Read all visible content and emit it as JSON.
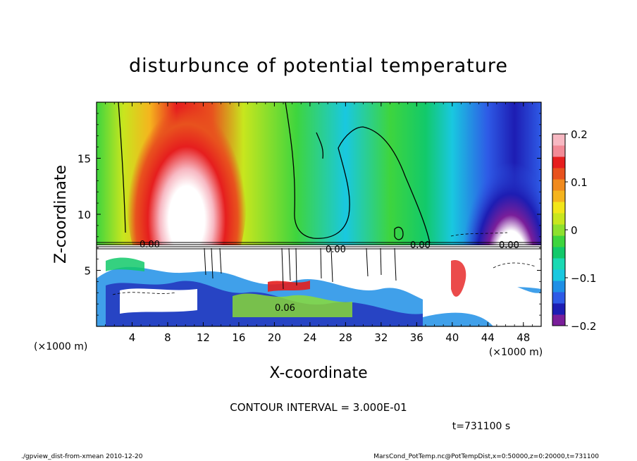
{
  "chart_data": {
    "type": "heatmap",
    "title": "disturbunce of potential temperature",
    "xlabel": "X-coordinate",
    "ylabel": "Z-coordinate",
    "xunit": "(×1000 m)",
    "yunit": "(×1000 m)",
    "x_ticks": [
      "4",
      "8",
      "12",
      "16",
      "20",
      "24",
      "28",
      "32",
      "36",
      "40",
      "44",
      "48"
    ],
    "y_ticks": [
      "5",
      "10",
      "15"
    ],
    "xlim": [
      0,
      50
    ],
    "ylim": [
      0,
      20
    ],
    "colorbar": {
      "ticks": [
        "0.2",
        "0.1",
        "0",
        "−0.1",
        "−0.2"
      ],
      "range": [
        -0.2,
        0.2
      ],
      "colors": [
        "#7a1e9a",
        "#1d1db3",
        "#2e5ae6",
        "#1e8fe6",
        "#19c8e0",
        "#1ad9b3",
        "#12c96a",
        "#3ed53e",
        "#8de02e",
        "#c8e61e",
        "#f2e619",
        "#f5b41e",
        "#f08a1e",
        "#e8521e",
        "#e61e1e",
        "#f28a96",
        "#f7b8c2"
      ]
    },
    "contour_labels": [
      "0.00",
      "0.00",
      "0.00",
      "0.00",
      "0.06"
    ],
    "grid": false
  },
  "contour_interval": "CONTOUR INTERVAL = 3.000E-01",
  "time_label": "t=731100 s",
  "footer_left": "./gpview_dist-from-xmean  2010-12-20",
  "footer_right": "MarsCond_PotTemp.nc@PotTempDist,x=0:50000,z=0:20000,t=731100"
}
